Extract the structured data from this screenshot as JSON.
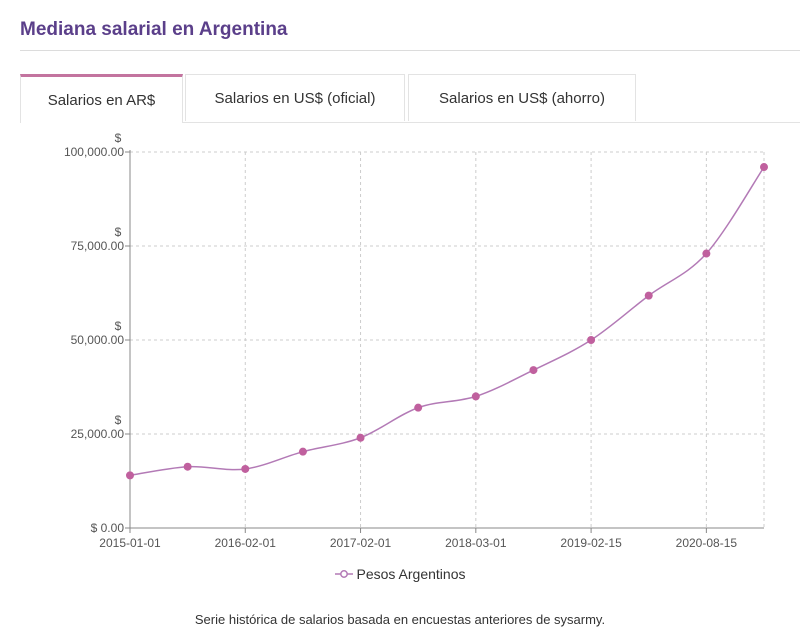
{
  "header": {
    "title": "Mediana salarial en Argentina"
  },
  "tabs": [
    {
      "label": "Salarios en AR$",
      "active": true
    },
    {
      "label": "Salarios en US$ (oficial)",
      "active": false
    },
    {
      "label": "Salarios en US$ (ahorro)",
      "active": false
    }
  ],
  "colors": {
    "series": "#b37ab6",
    "marker": "#c0609e",
    "accent": "#c3749f",
    "title": "#5b3f8a"
  },
  "chart_data": {
    "type": "line",
    "title": "",
    "xlabel": "",
    "ylabel": "",
    "x_ticks": [
      "2015-01-01",
      "2016-02-01",
      "2017-02-01",
      "2018-03-01",
      "2019-02-15",
      "2020-08-15"
    ],
    "y_ticks": [
      {
        "value": 0,
        "prefix": "$ ",
        "number": "0.00"
      },
      {
        "value": 25000,
        "prefix": "$",
        "number": "25,000.00"
      },
      {
        "value": 50000,
        "prefix": "$",
        "number": "50,000.00"
      },
      {
        "value": 75000,
        "prefix": "$",
        "number": "75,000.00"
      },
      {
        "value": 100000,
        "prefix": "$",
        "number": "100,000.00"
      }
    ],
    "ylim": [
      0,
      100000
    ],
    "grid": true,
    "legend_position": "bottom",
    "series": [
      {
        "name": "Pesos Argentinos",
        "values": [
          14000,
          16300,
          15700,
          20300,
          24000,
          32000,
          35000,
          42000,
          50000,
          61800,
          73000,
          96000
        ]
      }
    ]
  },
  "footnote": "Serie histórica de salarios basada en encuestas anteriores de sysarmy."
}
